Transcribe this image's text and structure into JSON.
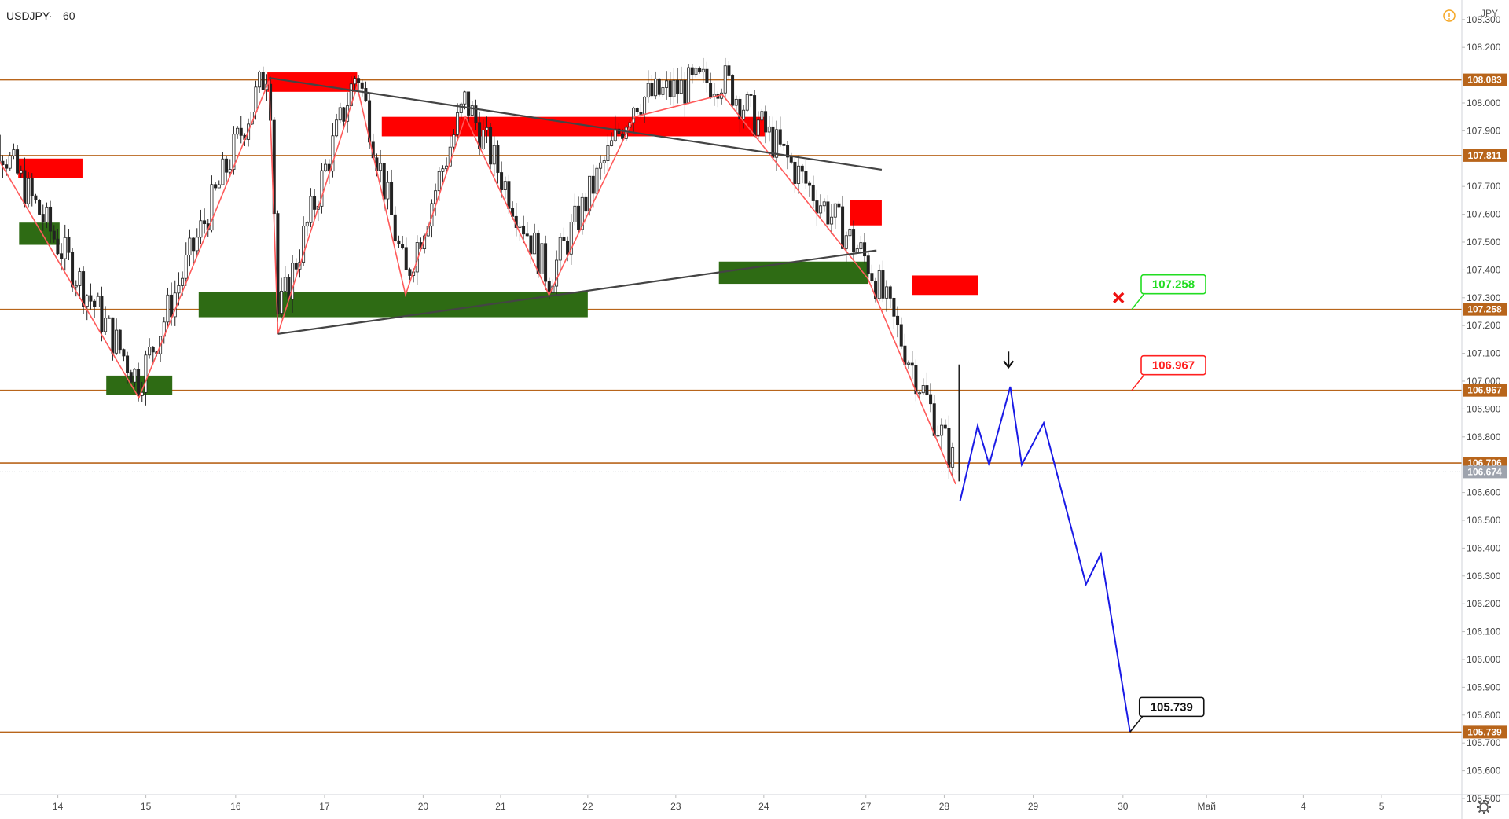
{
  "header": {
    "symbol": "USDJPY",
    "interval": "60",
    "separator": "·",
    "currency": "JPY",
    "alert_icon": "alert-circle-icon"
  },
  "footer": {
    "settings_icon": "gear-icon"
  },
  "colors": {
    "level": "#b8651b",
    "resistance": "#ff0000",
    "support": "#2e6b14",
    "pattern": "#ff5a5a",
    "trend": "#444444",
    "forecast": "#1a1ae6",
    "price_tag": "#9ea3ad"
  },
  "chart_data": {
    "type": "candlestick",
    "ylim": [
      105.5,
      108.37
    ],
    "x_ticks": [
      {
        "label": "14",
        "x": 0.3
      },
      {
        "label": "15",
        "x": 1.3
      },
      {
        "label": "16",
        "x": 2.32
      },
      {
        "label": "17",
        "x": 3.33
      },
      {
        "label": "20",
        "x": 4.45
      },
      {
        "label": "21",
        "x": 5.33
      },
      {
        "label": "22",
        "x": 6.32
      },
      {
        "label": "23",
        "x": 7.32
      },
      {
        "label": "24",
        "x": 8.32
      },
      {
        "label": "27",
        "x": 9.48
      },
      {
        "label": "28",
        "x": 10.37
      },
      {
        "label": "29",
        "x": 11.38
      },
      {
        "label": "30",
        "x": 12.4
      },
      {
        "label": "Май",
        "x": 13.35
      },
      {
        "label": "4",
        "x": 14.45
      },
      {
        "label": "5",
        "x": 15.34
      }
    ],
    "y_ticks": [
      "108.300",
      "108.200",
      "108.000",
      "107.900",
      "107.700",
      "107.600",
      "107.500",
      "107.400",
      "107.300",
      "107.200",
      "107.100",
      "107.000",
      "106.900",
      "106.800",
      "106.600",
      "106.500",
      "106.400",
      "106.300",
      "106.200",
      "106.100",
      "106.000",
      "105.900",
      "105.800",
      "105.700",
      "105.600",
      "105.500"
    ],
    "levels": [
      {
        "value": 108.083,
        "label": "108.083"
      },
      {
        "value": 107.811,
        "label": "107.811"
      },
      {
        "value": 107.258,
        "label": "107.258"
      },
      {
        "value": 106.967,
        "label": "106.967"
      },
      {
        "value": 106.706,
        "label": "106.706"
      },
      {
        "value": 105.739,
        "label": "105.739"
      }
    ],
    "last_price": {
      "value": 106.674,
      "label": "106.674"
    },
    "resistance_zones": [
      {
        "x0": -0.15,
        "x1": 0.58,
        "y0": 107.73,
        "y1": 107.8
      },
      {
        "x0": 2.68,
        "x1": 3.7,
        "y0": 108.04,
        "y1": 108.11
      },
      {
        "x0": 3.98,
        "x1": 8.33,
        "y0": 107.88,
        "y1": 107.95
      },
      {
        "x0": 9.3,
        "x1": 9.66,
        "y0": 107.56,
        "y1": 107.65
      },
      {
        "x0": 10.0,
        "x1": 10.75,
        "y0": 107.31,
        "y1": 107.38
      }
    ],
    "support_zones": [
      {
        "x0": -0.14,
        "x1": 0.32,
        "y0": 107.49,
        "y1": 107.57
      },
      {
        "x0": 0.85,
        "x1": 1.6,
        "y0": 106.95,
        "y1": 107.02
      },
      {
        "x0": 1.9,
        "x1": 6.32,
        "y0": 107.23,
        "y1": 107.32
      },
      {
        "x0": 7.81,
        "x1": 9.5,
        "y0": 107.35,
        "y1": 107.43
      }
    ],
    "pattern_line": [
      [
        -0.66,
        107.95
      ],
      [
        1.22,
        106.94
      ],
      [
        2.7,
        108.08
      ],
      [
        2.8,
        107.17
      ],
      [
        3.7,
        108.06
      ],
      [
        4.25,
        107.31
      ],
      [
        4.93,
        107.95
      ],
      [
        5.88,
        107.31
      ],
      [
        6.85,
        107.95
      ],
      [
        7.85,
        108.03
      ],
      [
        9.5,
        107.37
      ],
      [
        10.5,
        106.63
      ]
    ],
    "trend_lines": [
      [
        [
          2.7,
          108.09
        ],
        [
          9.66,
          107.76
        ]
      ],
      [
        [
          2.8,
          107.17
        ],
        [
          9.6,
          107.47
        ]
      ]
    ],
    "forecast_path": [
      [
        10.55,
        106.57
      ],
      [
        10.75,
        106.84
      ],
      [
        10.88,
        106.7
      ],
      [
        11.12,
        106.98
      ],
      [
        11.25,
        106.7
      ],
      [
        11.5,
        106.85
      ],
      [
        11.98,
        106.27
      ],
      [
        12.15,
        106.38
      ],
      [
        12.48,
        105.74
      ]
    ],
    "candle_range": [
      -0.66,
      10.5
    ],
    "annotations": {
      "target_label": "105.739",
      "level_labels": [
        {
          "label": "107.258",
          "color": "#22dd22",
          "value": 107.258,
          "x": 12.5
        },
        {
          "label": "106.967",
          "color": "#ff2020",
          "value": 106.967,
          "x": 12.5
        }
      ],
      "cancel_mark": {
        "x": 12.35,
        "y": 107.3,
        "icon": "cross-icon"
      },
      "down_arrow": {
        "x": 11.1,
        "y": 107.05,
        "icon": "arrow-down-icon"
      }
    }
  }
}
